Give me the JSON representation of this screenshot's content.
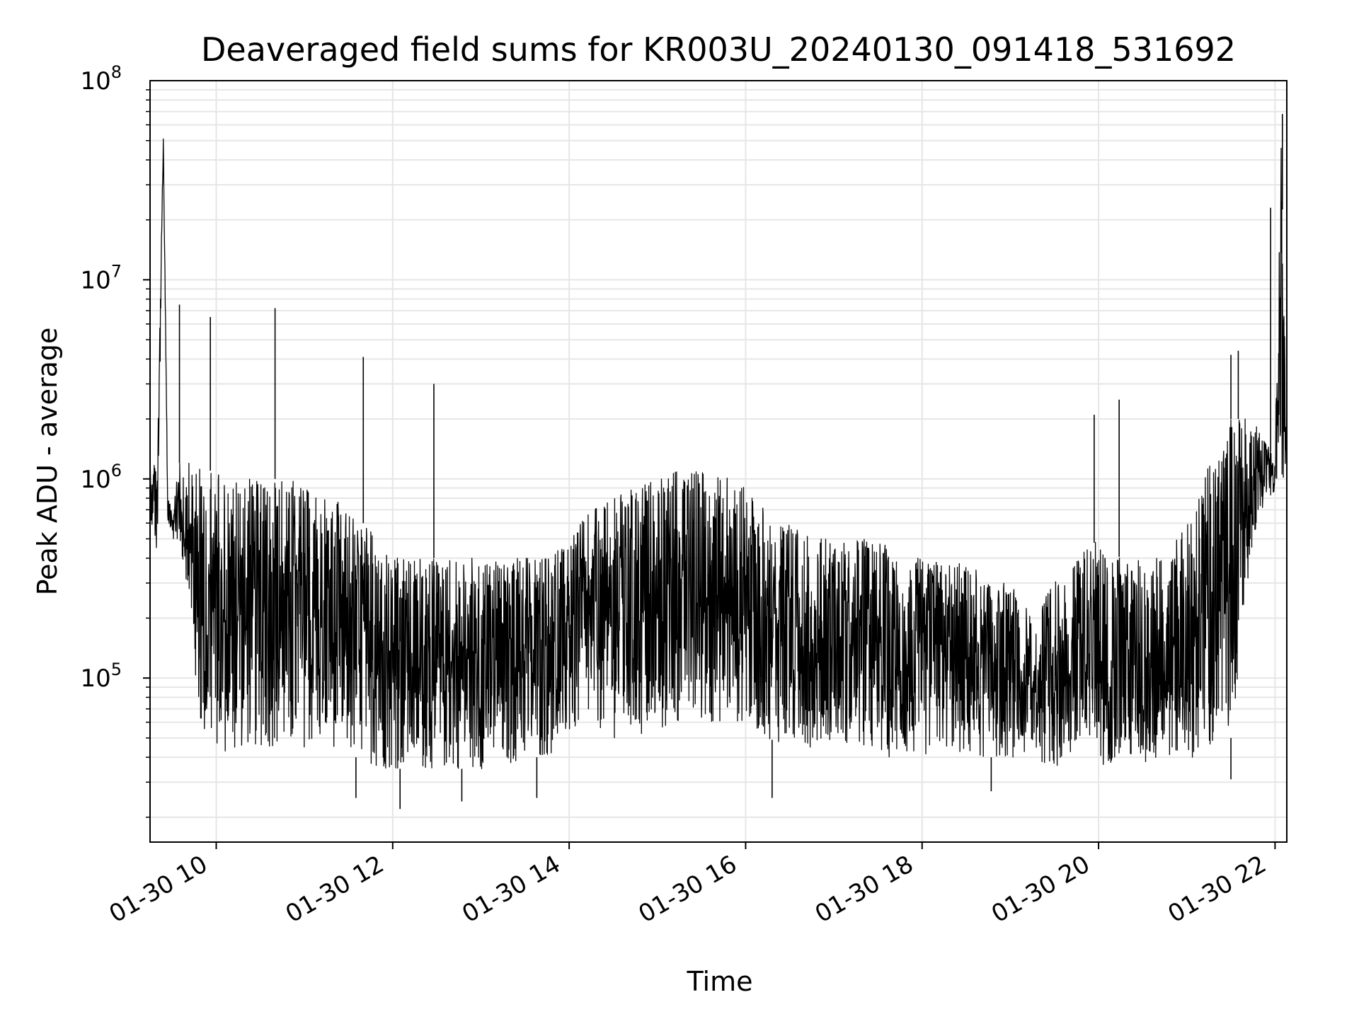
{
  "chart_data": {
    "type": "line",
    "title": "Deaveraged field sums for KR003U_20240130_091418_531692",
    "xlabel": "Time",
    "ylabel": "Peak ADU - average",
    "y_scale": "log",
    "ylim": [
      15000,
      100000000
    ],
    "xlim": [
      "2024-01-30 09:15",
      "2024-01-30 22:08"
    ],
    "x_ticks": [
      {
        "label": "01-30 10",
        "value": "2024-01-30 10:00"
      },
      {
        "label": "01-30 12",
        "value": "2024-01-30 12:00"
      },
      {
        "label": "01-30 14",
        "value": "2024-01-30 14:00"
      },
      {
        "label": "01-30 16",
        "value": "2024-01-30 16:00"
      },
      {
        "label": "01-30 18",
        "value": "2024-01-30 18:00"
      },
      {
        "label": "01-30 20",
        "value": "2024-01-30 20:00"
      },
      {
        "label": "01-30 22",
        "value": "2024-01-30 22:00"
      }
    ],
    "y_ticks": [
      {
        "base": "10",
        "exp": "5",
        "value": 100000
      },
      {
        "base": "10",
        "exp": "6",
        "value": 1000000
      },
      {
        "base": "10",
        "exp": "7",
        "value": 10000000
      },
      {
        "base": "10",
        "exp": "8",
        "value": 100000000
      }
    ],
    "grid": true,
    "line_color": "#000000",
    "grid_color": "#e6e6e6",
    "series": [
      {
        "x": [
          "2024-01-30 09:15",
          "2024-01-30 09:20",
          "2024-01-30 09:24",
          "2024-01-30 09:27",
          "2024-01-30 09:30",
          "2024-01-30 09:34",
          "2024-01-30 09:40",
          "2024-01-30 09:45",
          "2024-01-30 09:50",
          "2024-01-30 09:55",
          "2024-01-30 10:00",
          "2024-01-30 10:10",
          "2024-01-30 10:20",
          "2024-01-30 10:30",
          "2024-01-30 10:40",
          "2024-01-30 10:50",
          "2024-01-30 11:00",
          "2024-01-30 11:10",
          "2024-01-30 11:20",
          "2024-01-30 11:30",
          "2024-01-30 11:40",
          "2024-01-30 11:50",
          "2024-01-30 12:00",
          "2024-01-30 12:15",
          "2024-01-30 12:30",
          "2024-01-30 12:45",
          "2024-01-30 13:00",
          "2024-01-30 13:15",
          "2024-01-30 13:30",
          "2024-01-30 13:45",
          "2024-01-30 14:00",
          "2024-01-30 14:15",
          "2024-01-30 14:30",
          "2024-01-30 14:45",
          "2024-01-30 15:00",
          "2024-01-30 15:15",
          "2024-01-30 15:30",
          "2024-01-30 15:45",
          "2024-01-30 16:00",
          "2024-01-30 16:15",
          "2024-01-30 16:30",
          "2024-01-30 16:45",
          "2024-01-30 17:00",
          "2024-01-30 17:15",
          "2024-01-30 17:30",
          "2024-01-30 17:45",
          "2024-01-30 18:00",
          "2024-01-30 18:15",
          "2024-01-30 18:30",
          "2024-01-30 18:45",
          "2024-01-30 19:00",
          "2024-01-30 19:15",
          "2024-01-30 19:30",
          "2024-01-30 19:45",
          "2024-01-30 20:00",
          "2024-01-30 20:15",
          "2024-01-30 20:30",
          "2024-01-30 20:45",
          "2024-01-30 21:00",
          "2024-01-30 21:15",
          "2024-01-30 21:30",
          "2024-01-30 21:45",
          "2024-01-30 21:55",
          "2024-01-30 22:00",
          "2024-01-30 22:04",
          "2024-01-30 22:08"
        ],
        "low": [
          600000,
          400000,
          45000000,
          600000,
          500000,
          500000,
          300000,
          100000,
          50000,
          45000,
          45000,
          40000,
          45000,
          45000,
          45000,
          40000,
          45000,
          45000,
          45000,
          40000,
          40000,
          35000,
          35000,
          35000,
          35000,
          35000,
          35000,
          35000,
          40000,
          40000,
          50000,
          60000,
          50000,
          50000,
          50000,
          60000,
          60000,
          60000,
          60000,
          50000,
          45000,
          45000,
          50000,
          45000,
          40000,
          40000,
          40000,
          45000,
          40000,
          40000,
          40000,
          40000,
          35000,
          40000,
          35000,
          40000,
          35000,
          40000,
          40000,
          40000,
          50000,
          500000,
          800000,
          850000,
          900000,
          1000000
        ],
        "high": [
          1300000,
          1300000,
          55000000,
          800000,
          700000,
          1200000,
          1200000,
          1200000,
          1100000,
          1100000,
          1100000,
          1000000,
          1000000,
          1000000,
          1000000,
          1000000,
          900000,
          800000,
          800000,
          700000,
          600000,
          500000,
          400000,
          400000,
          400000,
          400000,
          400000,
          400000,
          400000,
          400000,
          500000,
          700000,
          800000,
          900000,
          1000000,
          1100000,
          1100000,
          1100000,
          900000,
          700000,
          600000,
          500000,
          500000,
          500000,
          500000,
          400000,
          400000,
          400000,
          400000,
          300000,
          300000,
          200000,
          300000,
          400000,
          500000,
          400000,
          400000,
          400000,
          600000,
          1200000,
          2000000,
          2000000,
          1500000,
          1200000,
          60000000,
          1200000
        ],
        "spikes": [
          {
            "x": "2024-01-30 09:35",
            "y": 7500000
          },
          {
            "x": "2024-01-30 09:56",
            "y": 6500000
          },
          {
            "x": "2024-01-30 10:40",
            "y": 7200000
          },
          {
            "x": "2024-01-30 11:40",
            "y": 4100000
          },
          {
            "x": "2024-01-30 12:28",
            "y": 3000000
          },
          {
            "x": "2024-01-30 19:57",
            "y": 2100000
          },
          {
            "x": "2024-01-30 20:14",
            "y": 2500000
          },
          {
            "x": "2024-01-30 21:30",
            "y": 4200000
          },
          {
            "x": "2024-01-30 21:35",
            "y": 4400000
          },
          {
            "x": "2024-01-30 21:57",
            "y": 23000000
          },
          {
            "x": "2024-01-30 22:05",
            "y": 68000000
          }
        ],
        "dips": [
          {
            "x": "2024-01-30 11:35",
            "y": 25000
          },
          {
            "x": "2024-01-30 12:05",
            "y": 22000
          },
          {
            "x": "2024-01-30 12:47",
            "y": 24000
          },
          {
            "x": "2024-01-30 13:38",
            "y": 25000
          },
          {
            "x": "2024-01-30 16:18",
            "y": 25000
          },
          {
            "x": "2024-01-30 18:47",
            "y": 27000
          },
          {
            "x": "2024-01-30 21:30",
            "y": 31000
          }
        ]
      }
    ]
  }
}
